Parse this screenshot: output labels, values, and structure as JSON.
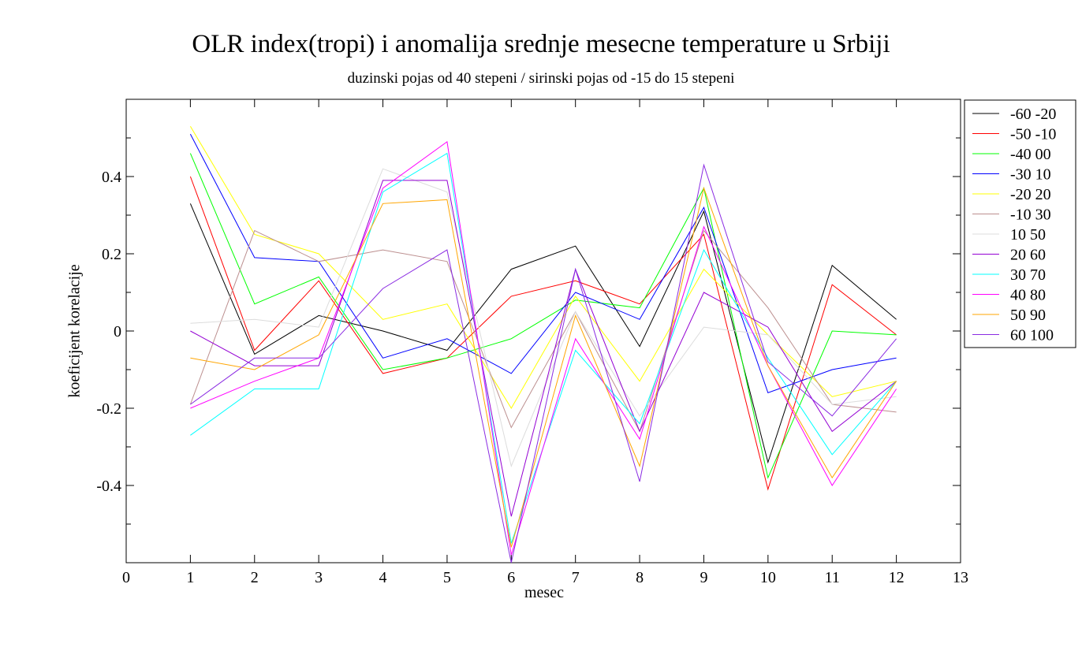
{
  "chart_data": {
    "type": "line",
    "title": "OLR index(tropi) i anomalija srednje mesecne temperature u Srbiji",
    "subtitle": "duzinski pojas od 40 stepeni / sirinski pojas od -15 do 15 stepeni",
    "xlabel": "mesec",
    "ylabel": "koeficijent korelacije",
    "xlim": [
      0,
      13
    ],
    "ylim": [
      -0.6,
      0.6
    ],
    "xticks": [
      0,
      1,
      2,
      3,
      4,
      5,
      6,
      7,
      8,
      9,
      10,
      11,
      12,
      13
    ],
    "yticks_labeled": [
      -0.4,
      -0.2,
      0,
      0.2,
      0.4
    ],
    "yticks_labels": [
      "-0.4",
      "-0.2",
      "0",
      "0.2",
      "0.4"
    ],
    "yticks_minor": [
      -0.5,
      -0.3,
      -0.1,
      0.1,
      0.3,
      0.5
    ],
    "grid": false,
    "legend_position": "right-outside-top",
    "x": [
      1,
      2,
      3,
      4,
      5,
      6,
      7,
      8,
      9,
      10,
      11,
      12
    ],
    "series": [
      {
        "name": "-60 -20",
        "color": "#000000",
        "values": [
          0.33,
          -0.06,
          0.04,
          0.0,
          -0.05,
          0.16,
          0.22,
          -0.04,
          0.31,
          -0.34,
          0.17,
          0.03
        ]
      },
      {
        "name": "-50 -10",
        "color": "#ff0000",
        "values": [
          0.4,
          -0.05,
          0.13,
          -0.11,
          -0.07,
          0.09,
          0.13,
          0.07,
          0.25,
          -0.41,
          0.12,
          -0.01
        ]
      },
      {
        "name": "-40 00",
        "color": "#00ff00",
        "values": [
          0.46,
          0.07,
          0.14,
          -0.1,
          -0.07,
          -0.02,
          0.08,
          0.06,
          0.37,
          -0.38,
          0.0,
          -0.01
        ]
      },
      {
        "name": "-30 10",
        "color": "#0000ff",
        "values": [
          0.51,
          0.19,
          0.18,
          -0.07,
          -0.02,
          -0.11,
          0.1,
          0.03,
          0.32,
          -0.16,
          -0.1,
          -0.07
        ]
      },
      {
        "name": "-20 20",
        "color": "#ffff00",
        "values": [
          0.53,
          0.25,
          0.2,
          0.03,
          0.07,
          -0.2,
          0.09,
          -0.13,
          0.16,
          -0.01,
          -0.17,
          -0.13
        ]
      },
      {
        "name": "-10 30",
        "color": "#bc8f8f",
        "values": [
          -0.19,
          0.26,
          0.18,
          0.21,
          0.18,
          -0.25,
          0.05,
          -0.26,
          0.26,
          0.06,
          -0.19,
          -0.21
        ]
      },
      {
        "name": "10 50",
        "color": "#dcdcdc",
        "values": [
          0.02,
          0.03,
          0.01,
          0.42,
          0.36,
          -0.35,
          0.05,
          -0.22,
          0.01,
          -0.01,
          -0.19,
          -0.17
        ]
      },
      {
        "name": "20 60",
        "color": "#9400d3",
        "values": [
          0.0,
          -0.09,
          -0.09,
          0.39,
          0.39,
          -0.48,
          0.16,
          -0.26,
          0.1,
          0.01,
          -0.26,
          -0.13
        ]
      },
      {
        "name": "30 70",
        "color": "#00ffff",
        "values": [
          -0.27,
          -0.15,
          -0.15,
          0.36,
          0.46,
          -0.55,
          -0.05,
          -0.24,
          0.21,
          -0.07,
          -0.32,
          -0.13
        ]
      },
      {
        "name": "40 80",
        "color": "#ff00ff",
        "values": [
          -0.2,
          -0.13,
          -0.07,
          0.37,
          0.49,
          -0.58,
          -0.02,
          -0.28,
          0.27,
          -0.09,
          -0.4,
          -0.15
        ]
      },
      {
        "name": "50 90",
        "color": "#ffa500",
        "values": [
          -0.07,
          -0.1,
          -0.01,
          0.33,
          0.34,
          -0.56,
          0.04,
          -0.35,
          0.37,
          -0.09,
          -0.38,
          -0.13
        ]
      },
      {
        "name": "60 100",
        "color": "#8a2be2",
        "values": [
          -0.19,
          -0.07,
          -0.07,
          0.11,
          0.21,
          -0.6,
          0.16,
          -0.39,
          0.43,
          -0.08,
          -0.22,
          -0.02
        ]
      }
    ]
  }
}
